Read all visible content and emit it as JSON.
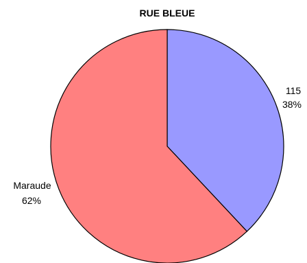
{
  "chart_data": {
    "type": "pie",
    "title": "RUE BLEUE",
    "slices": [
      {
        "label": "115",
        "value": 38,
        "percent_label": "38%",
        "color": "#9999FF"
      },
      {
        "label": "Maraude",
        "value": 62,
        "percent_label": "62%",
        "color": "#FF8080"
      }
    ],
    "start_angle_deg": 0,
    "direction": "clockwise"
  }
}
